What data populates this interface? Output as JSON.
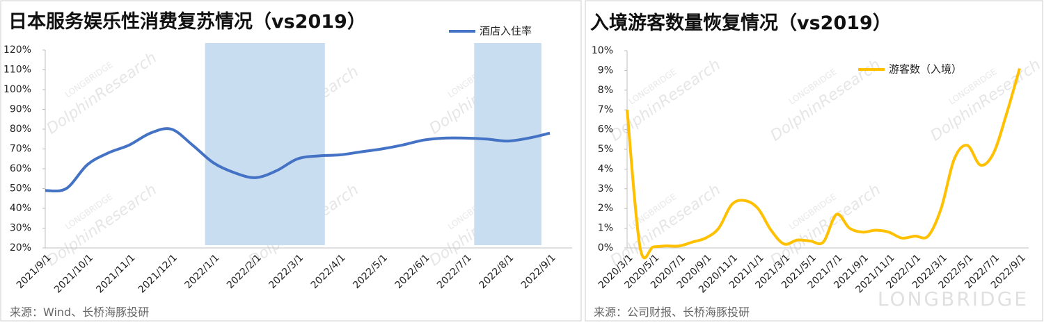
{
  "watermark": {
    "brand": "LONGBRIDGE",
    "name": "DolphinResearch"
  },
  "chart_data": [
    {
      "type": "line",
      "title": "日本服务娱乐性消费复苏情况（vs2019）",
      "source": "来源：Wind、长桥海豚投研",
      "categories": [
        "2021/9/1",
        null,
        "2021/10/1",
        null,
        "2021/11/1",
        null,
        "2021/12/1",
        null,
        "2022/1/1",
        null,
        "2022/2/1",
        null,
        "2022/3/1",
        null,
        "2022/4/1",
        null,
        "2022/5/1",
        null,
        "2022/6/1",
        null,
        "2022/7/1",
        null,
        "2022/8/1",
        null,
        "2022/9/1"
      ],
      "series": [
        {
          "name": "酒店入住率",
          "color": "#4472c4",
          "values": [
            49,
            50,
            62,
            68,
            72,
            78,
            80,
            72,
            63,
            58,
            55.5,
            59,
            65,
            66.5,
            67,
            68.5,
            70,
            72,
            74.5,
            75.5,
            75.5,
            75,
            74,
            75.5,
            78
          ]
        }
      ],
      "highlights": [
        {
          "from": 7.6,
          "to": 13.3
        },
        {
          "from": 20.4,
          "to": 23.6
        }
      ],
      "highlight_color": "#c9ddf1",
      "ylim": [
        20,
        120
      ],
      "yticks": [
        {
          "value": 20,
          "label": "20%"
        },
        {
          "value": 30,
          "label": "30%"
        },
        {
          "value": 40,
          "label": "40%"
        },
        {
          "value": 50,
          "label": "50%"
        },
        {
          "value": 60,
          "label": "60%"
        },
        {
          "value": 70,
          "label": "70%"
        },
        {
          "value": 80,
          "label": "80%"
        },
        {
          "value": 90,
          "label": "90%"
        },
        {
          "value": 100,
          "label": "100%"
        },
        {
          "value": 110,
          "label": "110%"
        },
        {
          "value": 120,
          "label": "120%"
        }
      ],
      "grid": false,
      "legend": "top-right"
    },
    {
      "type": "line",
      "title": "入境游客数量恢复情况（vs2019）",
      "source": "来源：公司财报、长桥海豚投研",
      "categories": [
        "2020/3/1",
        null,
        "2020/5/1",
        null,
        "2020/7/1",
        null,
        "2020/9/1",
        null,
        "2020/11/1",
        null,
        "2021/1/1",
        null,
        "2021/3/1",
        null,
        "2021/5/1",
        null,
        "2021/7/1",
        null,
        "2021/9/1",
        null,
        "2021/11/1",
        null,
        "2022/1/1",
        null,
        "2022/3/1",
        null,
        "2022/5/1",
        null,
        "2022/7/1",
        null,
        "2022/9/1"
      ],
      "series": [
        {
          "name": "游客数（入境）",
          "color": "#ffc000",
          "values": [
            7.0,
            0.0,
            0.05,
            0.1,
            0.1,
            0.3,
            0.5,
            1.0,
            2.2,
            2.4,
            2.0,
            0.9,
            0.2,
            0.4,
            0.35,
            0.3,
            1.7,
            1.0,
            0.8,
            0.9,
            0.8,
            0.5,
            0.6,
            0.6,
            2.0,
            4.5,
            5.2,
            4.2,
            4.8,
            6.8,
            9.1
          ]
        }
      ],
      "ylim": [
        0,
        10
      ],
      "yticks": [
        {
          "value": 0,
          "label": "0%"
        },
        {
          "value": 1,
          "label": "1%"
        },
        {
          "value": 2,
          "label": "2%"
        },
        {
          "value": 3,
          "label": "3%"
        },
        {
          "value": 4,
          "label": "4%"
        },
        {
          "value": 5,
          "label": "5%"
        },
        {
          "value": 6,
          "label": "6%"
        },
        {
          "value": 7,
          "label": "7%"
        },
        {
          "value": 8,
          "label": "8%"
        },
        {
          "value": 9,
          "label": "9%"
        },
        {
          "value": 10,
          "label": "10%"
        }
      ],
      "grid": false,
      "legend": "top-right"
    }
  ]
}
